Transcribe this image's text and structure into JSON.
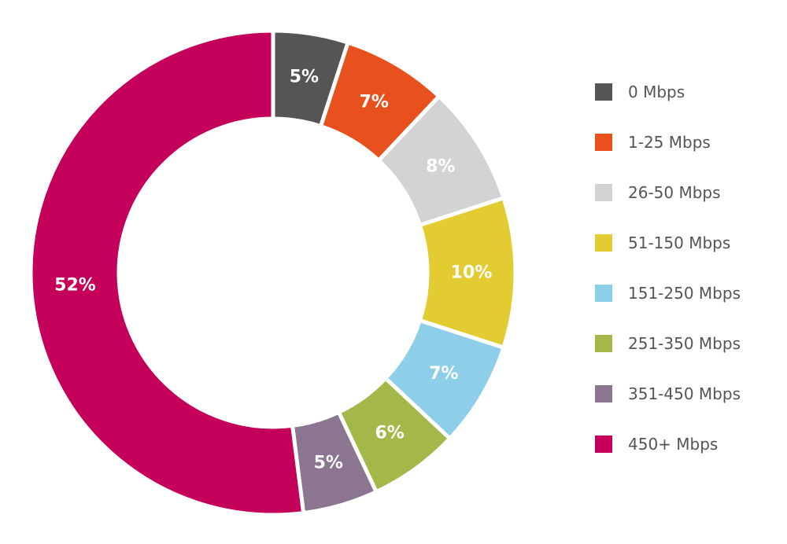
{
  "chart_data": {
    "type": "pie",
    "donut": true,
    "title": "",
    "legend_position": "right",
    "categories": [
      "0 Mbps",
      "1-25 Mbps",
      "26-50 Mbps",
      "51-150 Mbps",
      "151-250 Mbps",
      "251-350 Mbps",
      "351-450 Mbps",
      "450+ Mbps"
    ],
    "values": [
      5,
      7,
      8,
      10,
      7,
      6,
      5,
      52
    ],
    "data_labels": [
      "5%",
      "7%",
      "8%",
      "10%",
      "7%",
      "6%",
      "5%",
      "52%"
    ],
    "colors": [
      "#555555",
      "#E8511E",
      "#D3D3D3",
      "#E3CC32",
      "#8DCFE8",
      "#A4B84A",
      "#8C7590",
      "#C5005A"
    ]
  }
}
